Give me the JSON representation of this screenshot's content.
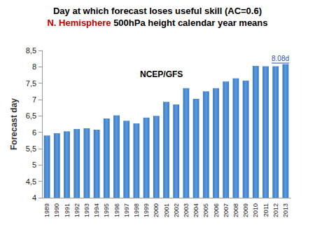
{
  "chart_data": {
    "type": "bar",
    "title": "Day at which forecast loses useful skill (AC=0.6)",
    "subtitle": [
      "N. Hemisphere",
      "500hPa height calendar year means"
    ],
    "ylabel": "Forecast day",
    "annotations": [
      "NCEP/GFS",
      "8.08d"
    ],
    "categories": [
      "1989",
      "1990",
      "1991",
      "1992",
      "1993",
      "1994",
      "1995",
      "1996",
      "1997",
      "1998",
      "1999",
      "2000",
      "2001",
      "2002",
      "2003",
      "2004",
      "2005",
      "2006",
      "2007",
      "2008",
      "2009",
      "2010",
      "2011",
      "2012",
      "2013"
    ],
    "values": [
      5.9,
      5.97,
      6.03,
      6.1,
      6.12,
      6.08,
      6.42,
      6.52,
      6.35,
      6.27,
      6.45,
      6.5,
      6.93,
      6.85,
      7.35,
      7.02,
      7.25,
      7.35,
      7.55,
      7.65,
      7.58,
      8.03,
      8.02,
      8.02,
      8.08
    ],
    "color": "#3a78c2",
    "ylim": [
      4,
      8.5
    ],
    "yticks": [
      4,
      {
        "value": 4.5,
        "label": "4,5"
      },
      5,
      {
        "value": 5.5,
        "label": "5,5"
      },
      6,
      {
        "value": 6.5,
        "label": "6,5"
      },
      7,
      {
        "value": 7.5,
        "label": "7,5"
      },
      8,
      {
        "value": 8.5,
        "label": "8,5"
      }
    ],
    "grid": false
  }
}
